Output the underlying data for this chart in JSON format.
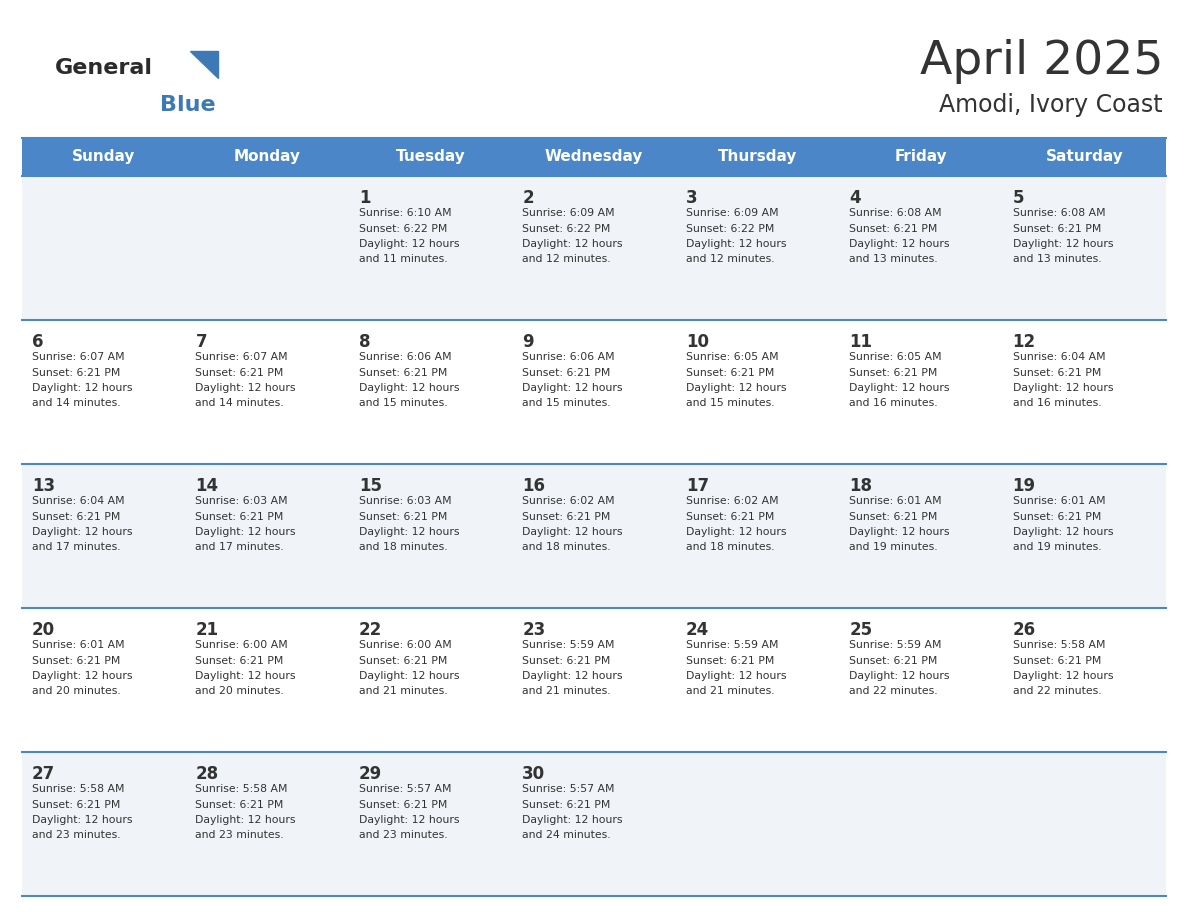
{
  "title": "April 2025",
  "subtitle": "Amodi, Ivory Coast",
  "header_bg_color": "#4a86c8",
  "header_text_color": "#ffffff",
  "row_bg_light": "#f0f4f8",
  "row_bg_white": "#ffffff",
  "row_separator_color": "#4a86c8",
  "text_color": "#333333",
  "days_of_week": [
    "Sunday",
    "Monday",
    "Tuesday",
    "Wednesday",
    "Thursday",
    "Friday",
    "Saturday"
  ],
  "calendar": [
    [
      {
        "day": "",
        "sunrise": "",
        "sunset": "",
        "daylight": ""
      },
      {
        "day": "",
        "sunrise": "",
        "sunset": "",
        "daylight": ""
      },
      {
        "day": "1",
        "sunrise": "6:10 AM",
        "sunset": "6:22 PM",
        "daylight": "12 hours and 11 minutes."
      },
      {
        "day": "2",
        "sunrise": "6:09 AM",
        "sunset": "6:22 PM",
        "daylight": "12 hours and 12 minutes."
      },
      {
        "day": "3",
        "sunrise": "6:09 AM",
        "sunset": "6:22 PM",
        "daylight": "12 hours and 12 minutes."
      },
      {
        "day": "4",
        "sunrise": "6:08 AM",
        "sunset": "6:21 PM",
        "daylight": "12 hours and 13 minutes."
      },
      {
        "day": "5",
        "sunrise": "6:08 AM",
        "sunset": "6:21 PM",
        "daylight": "12 hours and 13 minutes."
      }
    ],
    [
      {
        "day": "6",
        "sunrise": "6:07 AM",
        "sunset": "6:21 PM",
        "daylight": "12 hours and 14 minutes."
      },
      {
        "day": "7",
        "sunrise": "6:07 AM",
        "sunset": "6:21 PM",
        "daylight": "12 hours and 14 minutes."
      },
      {
        "day": "8",
        "sunrise": "6:06 AM",
        "sunset": "6:21 PM",
        "daylight": "12 hours and 15 minutes."
      },
      {
        "day": "9",
        "sunrise": "6:06 AM",
        "sunset": "6:21 PM",
        "daylight": "12 hours and 15 minutes."
      },
      {
        "day": "10",
        "sunrise": "6:05 AM",
        "sunset": "6:21 PM",
        "daylight": "12 hours and 15 minutes."
      },
      {
        "day": "11",
        "sunrise": "6:05 AM",
        "sunset": "6:21 PM",
        "daylight": "12 hours and 16 minutes."
      },
      {
        "day": "12",
        "sunrise": "6:04 AM",
        "sunset": "6:21 PM",
        "daylight": "12 hours and 16 minutes."
      }
    ],
    [
      {
        "day": "13",
        "sunrise": "6:04 AM",
        "sunset": "6:21 PM",
        "daylight": "12 hours and 17 minutes."
      },
      {
        "day": "14",
        "sunrise": "6:03 AM",
        "sunset": "6:21 PM",
        "daylight": "12 hours and 17 minutes."
      },
      {
        "day": "15",
        "sunrise": "6:03 AM",
        "sunset": "6:21 PM",
        "daylight": "12 hours and 18 minutes."
      },
      {
        "day": "16",
        "sunrise": "6:02 AM",
        "sunset": "6:21 PM",
        "daylight": "12 hours and 18 minutes."
      },
      {
        "day": "17",
        "sunrise": "6:02 AM",
        "sunset": "6:21 PM",
        "daylight": "12 hours and 18 minutes."
      },
      {
        "day": "18",
        "sunrise": "6:01 AM",
        "sunset": "6:21 PM",
        "daylight": "12 hours and 19 minutes."
      },
      {
        "day": "19",
        "sunrise": "6:01 AM",
        "sunset": "6:21 PM",
        "daylight": "12 hours and 19 minutes."
      }
    ],
    [
      {
        "day": "20",
        "sunrise": "6:01 AM",
        "sunset": "6:21 PM",
        "daylight": "12 hours and 20 minutes."
      },
      {
        "day": "21",
        "sunrise": "6:00 AM",
        "sunset": "6:21 PM",
        "daylight": "12 hours and 20 minutes."
      },
      {
        "day": "22",
        "sunrise": "6:00 AM",
        "sunset": "6:21 PM",
        "daylight": "12 hours and 21 minutes."
      },
      {
        "day": "23",
        "sunrise": "5:59 AM",
        "sunset": "6:21 PM",
        "daylight": "12 hours and 21 minutes."
      },
      {
        "day": "24",
        "sunrise": "5:59 AM",
        "sunset": "6:21 PM",
        "daylight": "12 hours and 21 minutes."
      },
      {
        "day": "25",
        "sunrise": "5:59 AM",
        "sunset": "6:21 PM",
        "daylight": "12 hours and 22 minutes."
      },
      {
        "day": "26",
        "sunrise": "5:58 AM",
        "sunset": "6:21 PM",
        "daylight": "12 hours and 22 minutes."
      }
    ],
    [
      {
        "day": "27",
        "sunrise": "5:58 AM",
        "sunset": "6:21 PM",
        "daylight": "12 hours and 23 minutes."
      },
      {
        "day": "28",
        "sunrise": "5:58 AM",
        "sunset": "6:21 PM",
        "daylight": "12 hours and 23 minutes."
      },
      {
        "day": "29",
        "sunrise": "5:57 AM",
        "sunset": "6:21 PM",
        "daylight": "12 hours and 23 minutes."
      },
      {
        "day": "30",
        "sunrise": "5:57 AM",
        "sunset": "6:21 PM",
        "daylight": "12 hours and 24 minutes."
      },
      {
        "day": "",
        "sunrise": "",
        "sunset": "",
        "daylight": ""
      },
      {
        "day": "",
        "sunrise": "",
        "sunset": "",
        "daylight": ""
      },
      {
        "day": "",
        "sunrise": "",
        "sunset": "",
        "daylight": ""
      }
    ]
  ],
  "logo_general_color": "#2b2b2b",
  "logo_blue_color": "#3d7ab5",
  "logo_triangle_color": "#3d7ab5",
  "figwidth": 11.88,
  "figheight": 9.18,
  "dpi": 100
}
